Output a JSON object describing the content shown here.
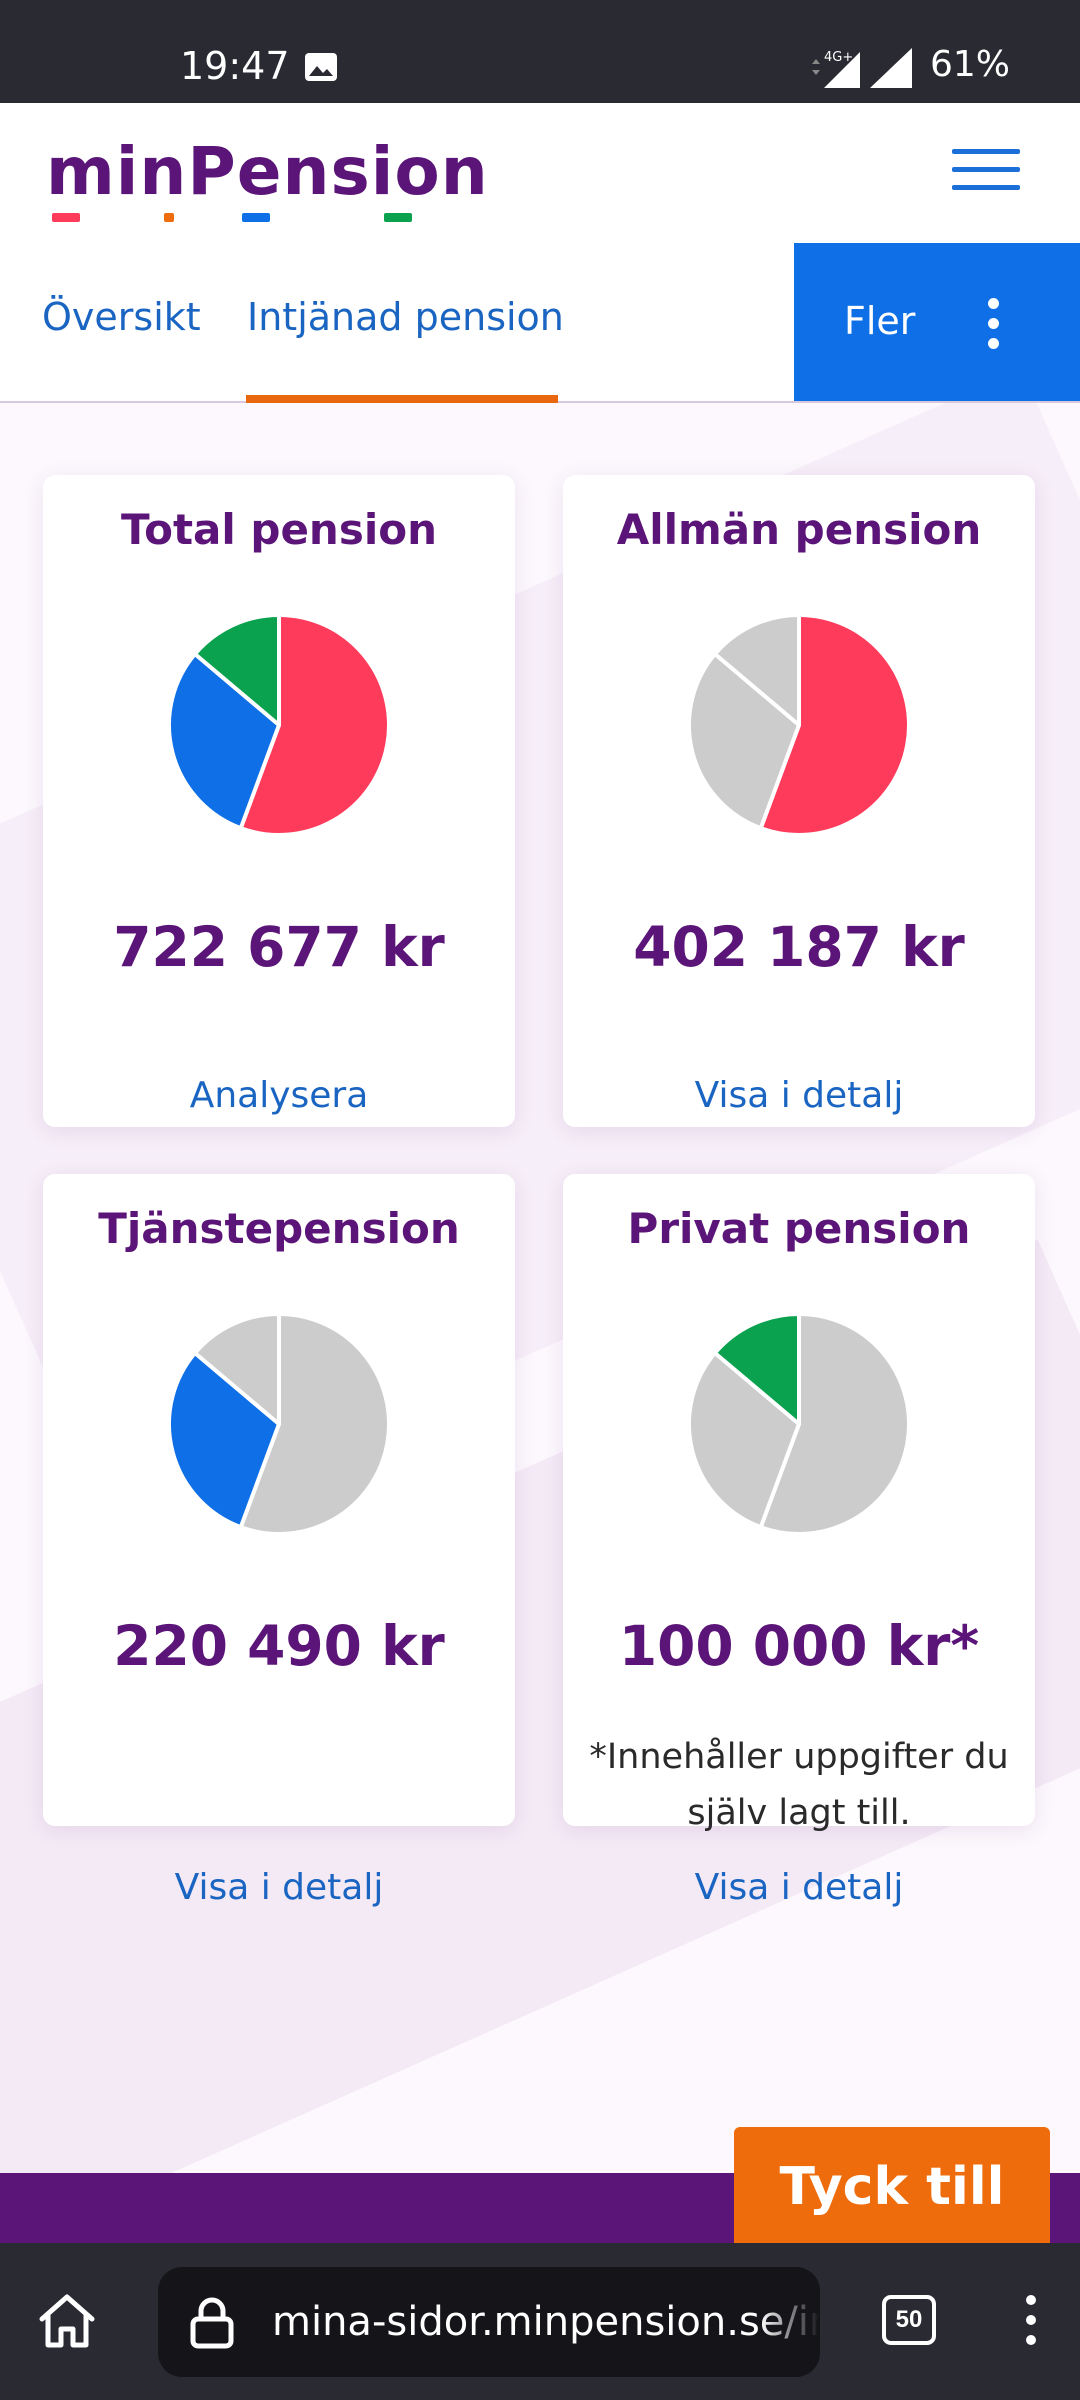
{
  "status_bar": {
    "time": "19:47",
    "network": "4G+",
    "battery": "61%"
  },
  "header": {
    "logo": "minPension"
  },
  "tabs": [
    {
      "label": "Översikt",
      "active": false
    },
    {
      "label": "Intjänad pension",
      "active": true
    }
  ],
  "more_button": {
    "label": "Fler"
  },
  "colors": {
    "allman": "#ff3b5c",
    "tjanste": "#0f6fe6",
    "privat": "#0aa14f",
    "inactive": "#cccccc",
    "brand": "#5b1477",
    "accent": "#ef6c0c"
  },
  "cards": [
    {
      "title": "Total pension",
      "amount": "722 677 kr",
      "link": "Analysera",
      "highlight": "all"
    },
    {
      "title": "Allmän pension",
      "amount": "402 187 kr",
      "link": "Visa i detalj",
      "highlight": "allman"
    },
    {
      "title": "Tjänstepension",
      "amount": "220 490 kr",
      "link": "Visa i detalj",
      "highlight": "tjanste"
    },
    {
      "title": "Privat pension",
      "amount": "100 000 kr*",
      "note": "*Innehåller uppgifter du själv lagt till.",
      "link": "Visa i detalj",
      "highlight": "privat"
    }
  ],
  "chart_data": {
    "type": "pie",
    "categories": [
      "Allmän pension",
      "Tjänstepension",
      "Privat pension"
    ],
    "values": [
      402187,
      220490,
      100000
    ]
  },
  "feedback_button": {
    "label": "Tyck till"
  },
  "browser": {
    "url": "mina-sidor.minpension.se/intjanad",
    "tab_count": "50"
  }
}
